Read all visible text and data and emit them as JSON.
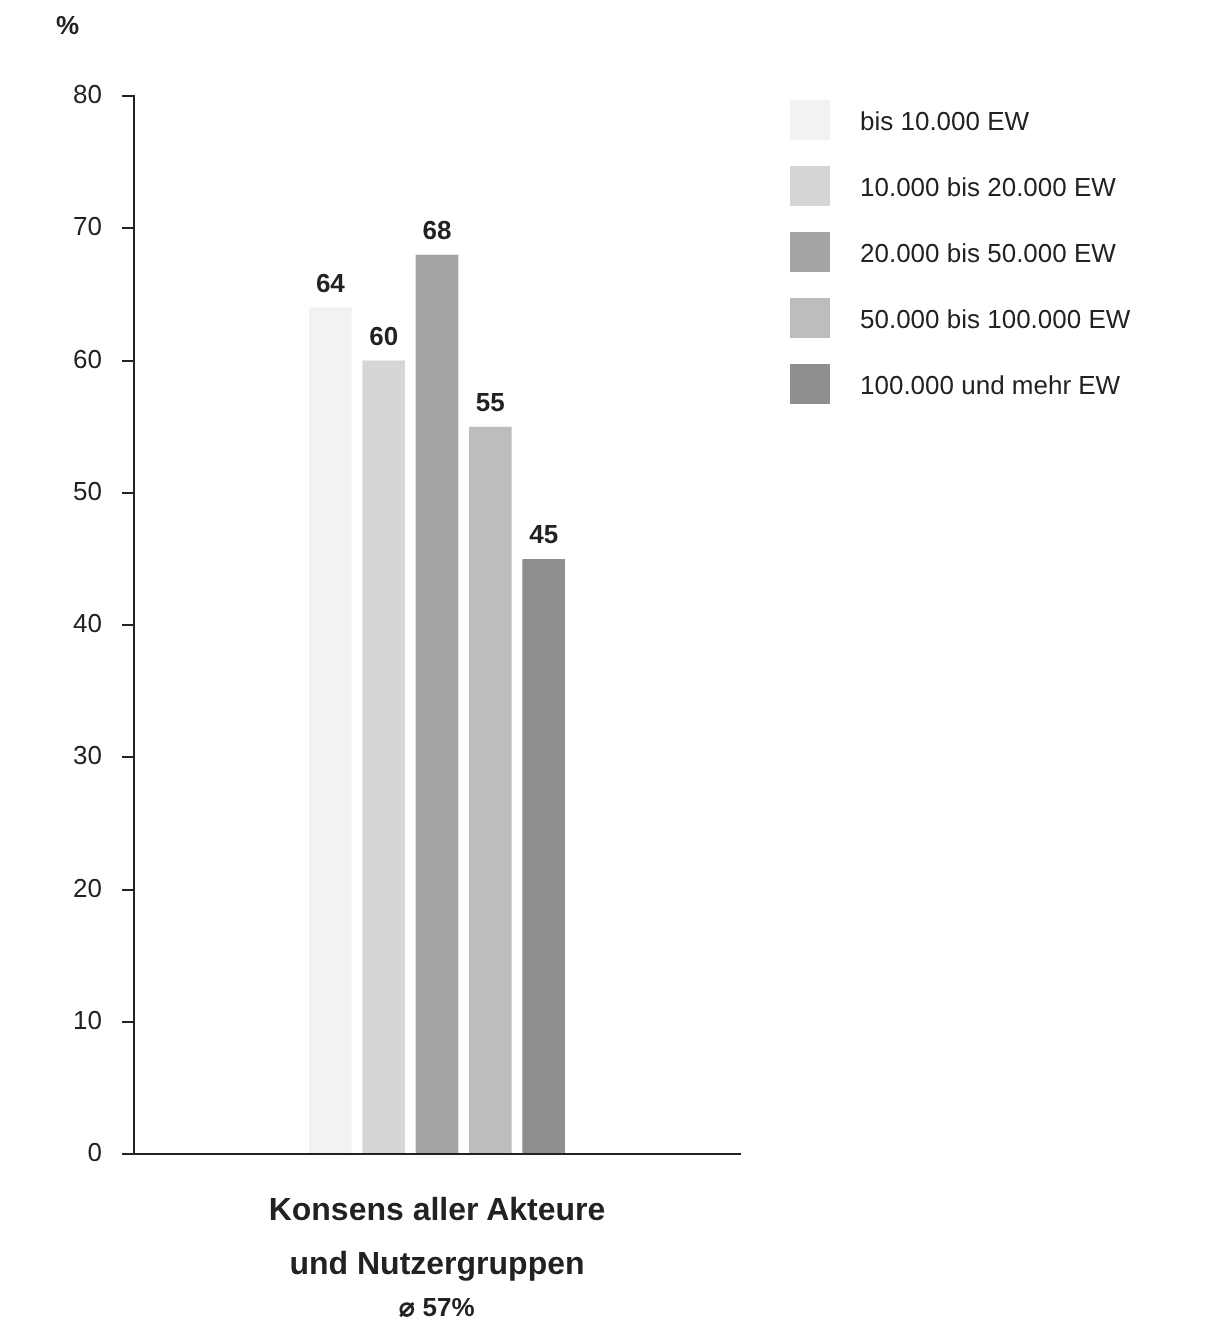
{
  "chart_data": {
    "type": "bar",
    "ylabel": "%",
    "categories": [
      "Konsens aller Akteure und Nutzergruppen"
    ],
    "series": [
      {
        "name": "bis 10.000 EW",
        "color": "#f2f2f2",
        "values": [
          64
        ]
      },
      {
        "name": "10.000 bis 20.000 EW",
        "color": "#d6d6d7",
        "values": [
          60
        ]
      },
      {
        "name": "20.000 bis 50.000 EW",
        "color": "#a4a4a6",
        "values": [
          68
        ]
      },
      {
        "name": "50.000 bis 100.000 EW",
        "color": "#bdbdbf",
        "values": [
          55
        ]
      },
      {
        "name": "100.000 und mehr EW",
        "color": "#8f8f91",
        "values": [
          45
        ]
      }
    ],
    "ylim": [
      0,
      80
    ],
    "yticks": [
      0,
      10,
      20,
      30,
      40,
      50,
      60,
      70,
      80
    ],
    "grid": false,
    "legend": "top right",
    "data_labels": true,
    "annotations": [
      "⌀ 57%"
    ]
  }
}
